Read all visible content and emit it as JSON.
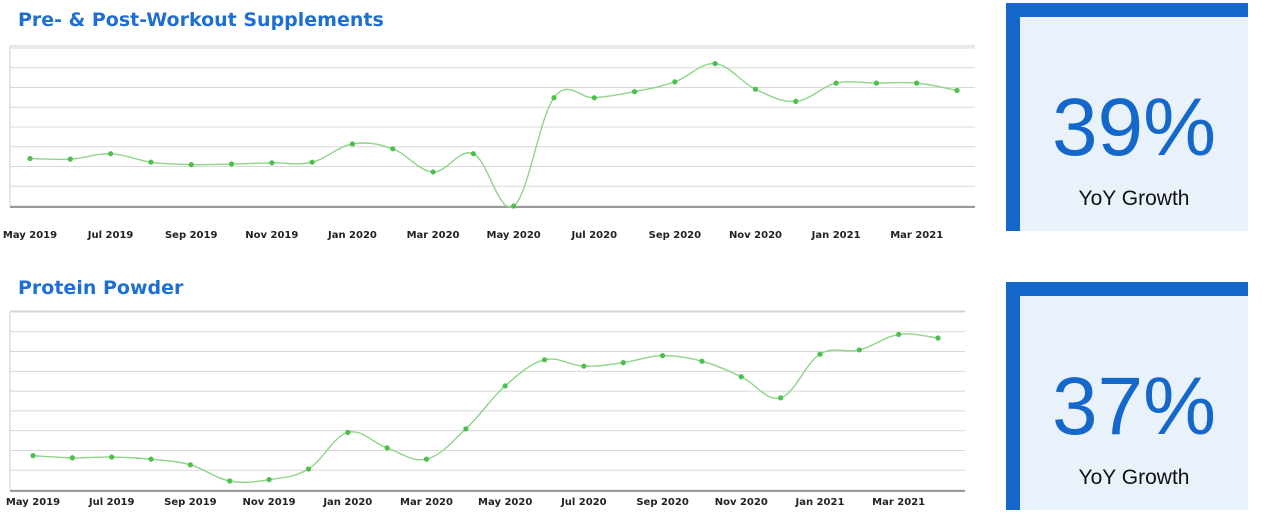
{
  "colors": {
    "accent": "#1468cc",
    "title": "#1f6fd1",
    "line": "#8fd48a",
    "marker": "#4cbf4c",
    "grid": "#d8d8d8",
    "card_bg": "#e9f2fa"
  },
  "panels": [
    {
      "title": "Pre- & Post-Workout Supplements",
      "stat": {
        "value": "39%",
        "label": "YoY Growth"
      }
    },
    {
      "title": "Protein Powder",
      "stat": {
        "value": "37%",
        "label": "YoY Growth"
      }
    }
  ],
  "chart_data": [
    {
      "type": "line",
      "title": "Pre- & Post-Workout Supplements",
      "x": [
        "May 2019",
        "Jun 2019",
        "Jul 2019",
        "Aug 2019",
        "Sep 2019",
        "Oct 2019",
        "Nov 2019",
        "Dec 2019",
        "Jan 2020",
        "Feb 2020",
        "Mar 2020",
        "Apr 2020",
        "May 2020",
        "Jun 2020",
        "Jul 2020",
        "Aug 2020",
        "Sep 2020",
        "Oct 2020",
        "Nov 2020",
        "Dec 2020",
        "Jan 2021",
        "Feb 2021",
        "Mar 2021",
        "Apr 2021"
      ],
      "tick_labels": [
        "May 2019",
        "Jul 2019",
        "Sep 2019",
        "Nov 2019",
        "Jan 2020",
        "Mar 2020",
        "May 2020",
        "Jul 2020",
        "Sep 2020",
        "Nov 2020",
        "Jan 2021",
        "Mar 2021"
      ],
      "values": [
        39,
        38.5,
        43,
        36,
        34,
        34.5,
        35.5,
        36,
        51,
        47,
        28,
        43,
        0,
        89,
        89,
        94,
        102,
        117,
        96,
        86,
        101,
        101,
        101,
        95
      ],
      "ylim": [
        0,
        120
      ],
      "grid": true
    },
    {
      "type": "line",
      "title": "Protein Powder",
      "x": [
        "May 2019",
        "Jun 2019",
        "Jul 2019",
        "Aug 2019",
        "Sep 2019",
        "Oct 2019",
        "Nov 2019",
        "Dec 2019",
        "Jan 2020",
        "Feb 2020",
        "Mar 2020",
        "Apr 2020",
        "May 2020",
        "Jun 2020",
        "Jul 2020",
        "Aug 2020",
        "Sep 2020",
        "Oct 2020",
        "Nov 2020",
        "Dec 2020",
        "Jan 2021",
        "Feb 2021",
        "Mar 2021",
        "Apr 2021"
      ],
      "tick_labels": [
        "May 2019",
        "Jul 2019",
        "Sep 2019",
        "Nov 2019",
        "Jan 2020",
        "Mar 2020",
        "May 2020",
        "Jul 2020",
        "Sep 2020",
        "Nov 2020",
        "Jan 2021",
        "Mar 2021"
      ],
      "values": [
        18,
        16.5,
        17,
        15.5,
        11.5,
        0,
        1,
        8.5,
        34.5,
        23.5,
        15.5,
        37,
        67.5,
        86,
        81.5,
        84,
        89,
        85,
        74,
        59,
        90,
        93,
        104,
        101.5
      ],
      "ylim": [
        0,
        110
      ],
      "grid": true
    }
  ]
}
